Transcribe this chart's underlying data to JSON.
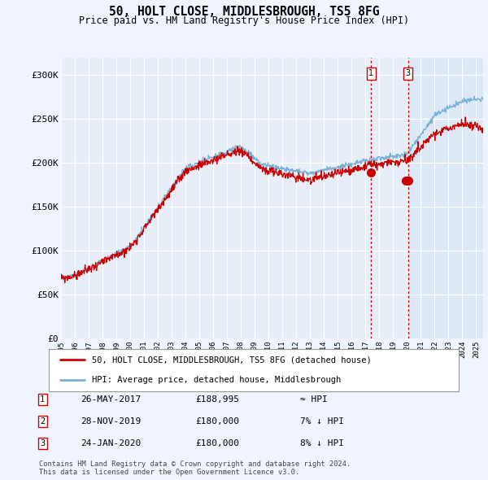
{
  "title": "50, HOLT CLOSE, MIDDLESBROUGH, TS5 8FG",
  "subtitle": "Price paid vs. HM Land Registry's House Price Index (HPI)",
  "ylabel_ticks": [
    "£0",
    "£50K",
    "£100K",
    "£150K",
    "£200K",
    "£250K",
    "£300K"
  ],
  "ytick_values": [
    0,
    50000,
    100000,
    150000,
    200000,
    250000,
    300000
  ],
  "ylim": [
    0,
    320000
  ],
  "xlim_start": 1995.0,
  "xlim_end": 2025.5,
  "sale_dates": [
    2017.4,
    2019.9,
    2020.07
  ],
  "sale_prices": [
    188995,
    180000,
    180000
  ],
  "sale_labels": [
    "1",
    "2",
    "3"
  ],
  "vline_sales": [
    0,
    2
  ],
  "vline_color": "#cc0000",
  "marker_color": "#cc0000",
  "hpi_line_color": "#7ab0d4",
  "price_line_color": "#cc0000",
  "background_color": "#f0f4ff",
  "plot_bg_color": "#e8eef8",
  "shade_bg_color": "#dce8f5",
  "grid_color": "#ffffff",
  "footer_text": "Contains HM Land Registry data © Crown copyright and database right 2024.\nThis data is licensed under the Open Government Licence v3.0.",
  "legend_entries": [
    "50, HOLT CLOSE, MIDDLESBROUGH, TS5 8FG (detached house)",
    "HPI: Average price, detached house, Middlesbrough"
  ],
  "table_rows": [
    [
      "1",
      "26-MAY-2017",
      "£188,995",
      "≈ HPI"
    ],
    [
      "2",
      "28-NOV-2019",
      "£180,000",
      "7% ↓ HPI"
    ],
    [
      "3",
      "24-JAN-2020",
      "£180,000",
      "8% ↓ HPI"
    ]
  ]
}
